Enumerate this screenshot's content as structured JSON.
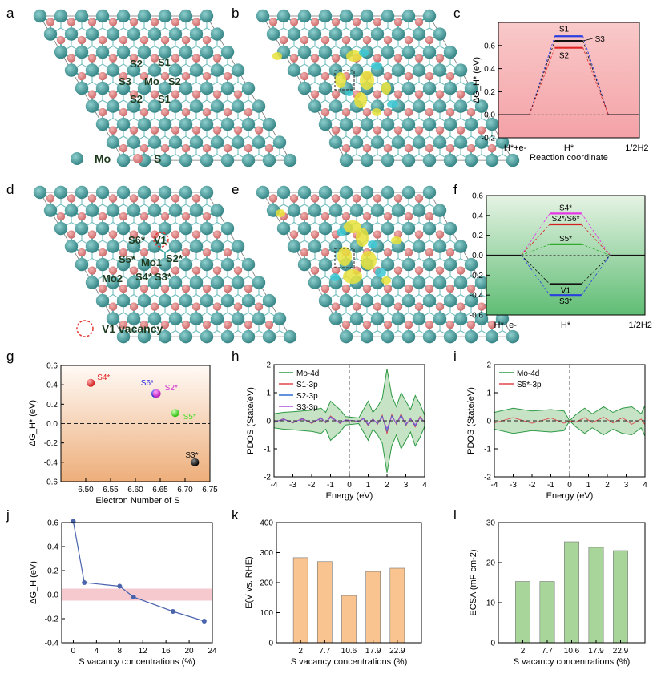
{
  "panel_labels": [
    "a",
    "b",
    "c",
    "d",
    "e",
    "f",
    "g",
    "h",
    "i",
    "j",
    "k",
    "l"
  ],
  "colors": {
    "mo_atom": "#3f8f8f",
    "s_atom": "#d77b7d",
    "bond": "#39a3a3",
    "charge_yellow": "#e8e23a",
    "charge_cyan": "#3cc8d4",
    "vacancy_ring": "#e53935",
    "green_curve": "#2e9a44",
    "red_curve": "#e0484d",
    "bar_orange": "#f9c48f",
    "bar_green": "#a8d69a",
    "line_blue": "#4a63ad",
    "pink_band": "#f6c9cf"
  },
  "panel_a": {
    "atom_labels": [
      "S2",
      "S1",
      "S3",
      "Mo",
      "S2",
      "S2",
      "S1"
    ],
    "legend": {
      "mo": "Mo",
      "s": "S"
    }
  },
  "panel_d": {
    "atom_labels": [
      "S6*",
      "V1",
      "S5*",
      "Mo1",
      "S2*",
      "Mo2",
      "S4*",
      "S3*"
    ],
    "legend": "V1 vacancy"
  },
  "chart_data": [
    {
      "panel": "c",
      "type": "line",
      "title": "",
      "xlabel": "Reaction coordinate",
      "ylabel": "ΔG_H* (eV)",
      "ylim": [
        -0.2,
        0.8
      ],
      "yticks": [
        "-0.2",
        "0.0",
        "0.2",
        "0.4",
        "0.6"
      ],
      "categories": [
        "H*+e-",
        "H*",
        "1/2H2"
      ],
      "series": [
        {
          "name": "S1",
          "values": [
            0,
            0.68,
            0
          ],
          "color": "#2a3fe0"
        },
        {
          "name": "S3",
          "values": [
            0,
            0.64,
            0
          ],
          "color": "#111111"
        },
        {
          "name": "S2",
          "values": [
            0,
            0.58,
            0
          ],
          "color": "#e02424"
        }
      ],
      "background": "red gradient"
    },
    {
      "panel": "f",
      "type": "line",
      "title": "",
      "xlabel": "",
      "ylabel": "",
      "ylim": [
        -0.6,
        0.6
      ],
      "yticks": [
        "-0.6",
        "-0.4",
        "-0.2",
        "0.0",
        "0.2",
        "0.4",
        "0.6"
      ],
      "categories": [
        "H*+e-",
        "H*",
        "1/2H2"
      ],
      "series": [
        {
          "name": "S4*",
          "values": [
            0,
            0.42,
            0
          ],
          "color": "#e536e5"
        },
        {
          "name": "S2*/S6*",
          "values": [
            0,
            0.31,
            0
          ],
          "color": "#d41f1f"
        },
        {
          "name": "S5*",
          "values": [
            0,
            0.11,
            0
          ],
          "color": "#2faa2f"
        },
        {
          "name": "V1",
          "values": [
            0,
            -0.29,
            0
          ],
          "color": "#111111"
        },
        {
          "name": "S3*",
          "values": [
            0,
            -0.4,
            0
          ],
          "color": "#2a3fe0"
        }
      ],
      "background": "green gradient"
    },
    {
      "panel": "g",
      "type": "scatter",
      "title": "",
      "xlabel": "Electron Number of S",
      "ylabel": "ΔG_H* (eV)",
      "xlim": [
        6.45,
        6.75
      ],
      "ylim": [
        -0.6,
        0.6
      ],
      "xticks": [
        "6.50",
        "6.55",
        "6.60",
        "6.65",
        "6.70",
        "6.75"
      ],
      "yticks": [
        "-0.6",
        "-0.4",
        "-0.2",
        "0.0",
        "0.2",
        "0.4",
        "0.6"
      ],
      "points": [
        {
          "label": "S4*",
          "x": 6.51,
          "y": 0.42,
          "color": "#e02424"
        },
        {
          "label": "S6*",
          "x": 6.64,
          "y": 0.31,
          "color": "#2a2ae0"
        },
        {
          "label": "S2*",
          "x": 6.643,
          "y": 0.31,
          "color": "#d02ad0"
        },
        {
          "label": "S5*",
          "x": 6.68,
          "y": 0.11,
          "color": "#44dd22"
        },
        {
          "label": "S3*",
          "x": 6.72,
          "y": -0.4,
          "color": "#111111"
        }
      ]
    },
    {
      "panel": "h",
      "type": "line",
      "title": "",
      "xlabel": "Energy (eV)",
      "ylabel": "PDOS (State/eV)",
      "xlim": [
        -4,
        4
      ],
      "ylim": [
        -2,
        2
      ],
      "xticks": [
        "-4",
        "-3",
        "-2",
        "-1",
        "0",
        "1",
        "2",
        "3",
        "4"
      ],
      "yticks": [
        "-2",
        "-1",
        "0",
        "1",
        "2"
      ],
      "series": [
        {
          "name": "Mo-4d",
          "color": "#2e9a44"
        },
        {
          "name": "S1-3p",
          "color": "#e0484d"
        },
        {
          "name": "S2-3p",
          "color": "#2f6fd6"
        },
        {
          "name": "S3-3p",
          "color": "#a855d6"
        }
      ],
      "x": [
        -4,
        -3.5,
        -3,
        -2.5,
        -2,
        -1.5,
        -1.25,
        -1,
        -0.5,
        -0.2,
        0.5,
        0.75,
        1,
        1.25,
        1.5,
        1.75,
        2,
        2.25,
        2.5,
        2.75,
        3,
        3.25,
        3.5,
        3.75,
        4
      ],
      "mo4d_upper": [
        0.25,
        0.3,
        0.32,
        0.35,
        0.38,
        0.45,
        0.3,
        0.7,
        0.4,
        0.15,
        0.1,
        0.4,
        0.7,
        0.3,
        0.5,
        0.8,
        1.85,
        0.9,
        0.5,
        1.0,
        0.7,
        0.4,
        0.9,
        0.6,
        0.2
      ]
    },
    {
      "panel": "i",
      "type": "line",
      "title": "",
      "xlabel": "Energy (eV)",
      "ylabel": "PDOS (State/eV)",
      "xlim": [
        -4,
        4
      ],
      "ylim": [
        -2,
        2
      ],
      "xticks": [
        "-4",
        "-3",
        "-2",
        "-1",
        "0",
        "1",
        "2",
        "3",
        "4"
      ],
      "yticks": [
        "-2",
        "-1",
        "0",
        "1",
        "2"
      ],
      "series": [
        {
          "name": "Mo-4d",
          "color": "#2e9a44"
        },
        {
          "name": "S5*-3p",
          "color": "#e0484d"
        }
      ],
      "x": [
        -4,
        -3,
        -2,
        -1,
        -0.3,
        0,
        0.3,
        0.8,
        1.2,
        1.8,
        2.3,
        2.8,
        3.3,
        3.8,
        4
      ],
      "mo4d_upper": [
        0.3,
        0.45,
        0.35,
        0.4,
        0.35,
        0,
        0.2,
        0.45,
        0.25,
        0.5,
        0.3,
        0.45,
        0.5,
        0.25,
        0.55
      ]
    },
    {
      "panel": "j",
      "type": "line",
      "title": "",
      "xlabel": "S vacancy concentrations (%)",
      "ylabel": "ΔG_H (eV)",
      "xlim": [
        -2,
        24
      ],
      "ylim": [
        -0.4,
        0.6
      ],
      "xticks": [
        "0",
        "4",
        "8",
        "12",
        "16",
        "20",
        "24"
      ],
      "yticks": [
        "-0.4",
        "-0.2",
        "0.0",
        "0.2",
        "0.4",
        "0.6"
      ],
      "x": [
        0,
        1.9,
        8,
        10.4,
        17.2,
        22.6
      ],
      "values": [
        0.61,
        0.1,
        0.07,
        -0.02,
        -0.14,
        -0.22
      ],
      "band": [
        -0.05,
        0.05
      ]
    },
    {
      "panel": "k",
      "type": "bar",
      "title": "",
      "xlabel": "S vacancy concentrations (%)",
      "ylabel": "E(V vs. RHE)",
      "categories": [
        "2",
        "7.7",
        "10.6",
        "17.9",
        "22.9"
      ],
      "values": [
        283,
        270,
        157,
        237,
        248
      ],
      "ylim": [
        0,
        400
      ],
      "yticks": [
        "0",
        "100",
        "200",
        "300",
        "400"
      ]
    },
    {
      "panel": "l",
      "type": "bar",
      "title": "",
      "xlabel": "S vacancy concentrations (%)",
      "ylabel": "ECSA (mF cm-2)",
      "categories": [
        "2",
        "7.7",
        "10.6",
        "17.9",
        "22.9"
      ],
      "values": [
        15.3,
        15.3,
        25.2,
        23.8,
        23.0
      ],
      "ylim": [
        0,
        30
      ],
      "yticks": [
        "0",
        "10",
        "20",
        "30"
      ]
    }
  ]
}
